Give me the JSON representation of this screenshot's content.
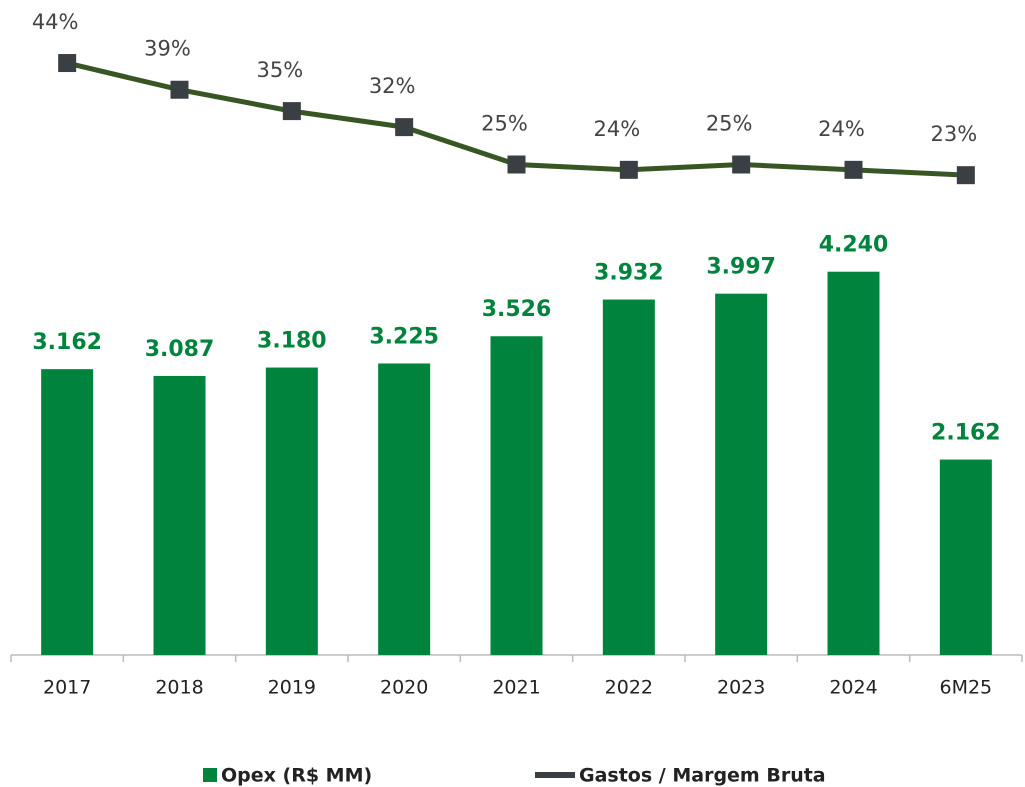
{
  "chart_data": {
    "type": "bar",
    "categories": [
      "2017",
      "2018",
      "2019",
      "2020",
      "2021",
      "2022",
      "2023",
      "2024",
      "6M25"
    ],
    "series": [
      {
        "name": "Opex (R$ MM)",
        "type": "bar",
        "color": "#00843d",
        "values": [
          3162,
          3087,
          3180,
          3225,
          3526,
          3932,
          3997,
          4240,
          2162
        ],
        "value_labels": [
          "3.162",
          "3.087",
          "3.180",
          "3.225",
          "3.526",
          "3.932",
          "3.997",
          "4.240",
          "2.162"
        ]
      },
      {
        "name": "Gastos / Margem Bruta",
        "type": "line",
        "axis": "y2",
        "color": "#375623",
        "marker_color": "#3a3f44",
        "values": [
          44,
          39,
          35,
          32,
          25,
          24,
          25,
          24,
          23
        ],
        "value_labels": [
          "44%",
          "39%",
          "35%",
          "32%",
          "25%",
          "24%",
          "25%",
          "24%",
          "23%"
        ]
      }
    ],
    "ylim": [
      0,
      5000
    ],
    "y2lim": [
      0,
      50
    ],
    "legend": "bottom"
  }
}
